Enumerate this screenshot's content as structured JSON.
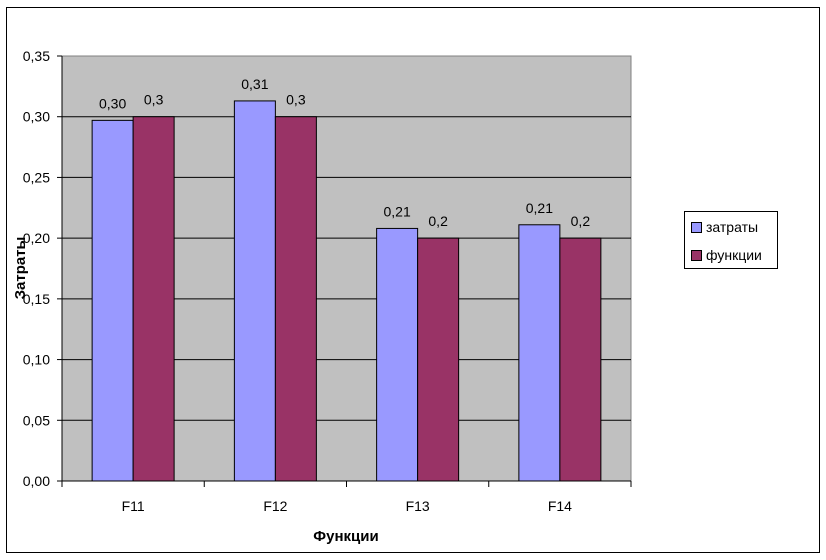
{
  "chart_data": {
    "type": "bar",
    "categories": [
      "F11",
      "F12",
      "F13",
      "F14"
    ],
    "series": [
      {
        "name": "затраты",
        "values": [
          0.297,
          0.313,
          0.208,
          0.211
        ],
        "labels": [
          "0,30",
          "0,31",
          "0,21",
          "0,21"
        ],
        "color": "#9999ff"
      },
      {
        "name": "функции",
        "values": [
          0.3,
          0.3,
          0.2,
          0.2
        ],
        "labels": [
          "0,3",
          "0,3",
          "0,2",
          "0,2"
        ],
        "color": "#993366"
      }
    ],
    "xlabel": "Функции",
    "ylabel": "Затраты",
    "ylim": [
      0,
      0.35
    ],
    "yticks": [
      "0,00",
      "0,05",
      "0,10",
      "0,15",
      "0,20",
      "0,25",
      "0,30",
      "0,35"
    ],
    "plot_background": "#c0c0c0",
    "grid": true,
    "legend_position": "right"
  }
}
